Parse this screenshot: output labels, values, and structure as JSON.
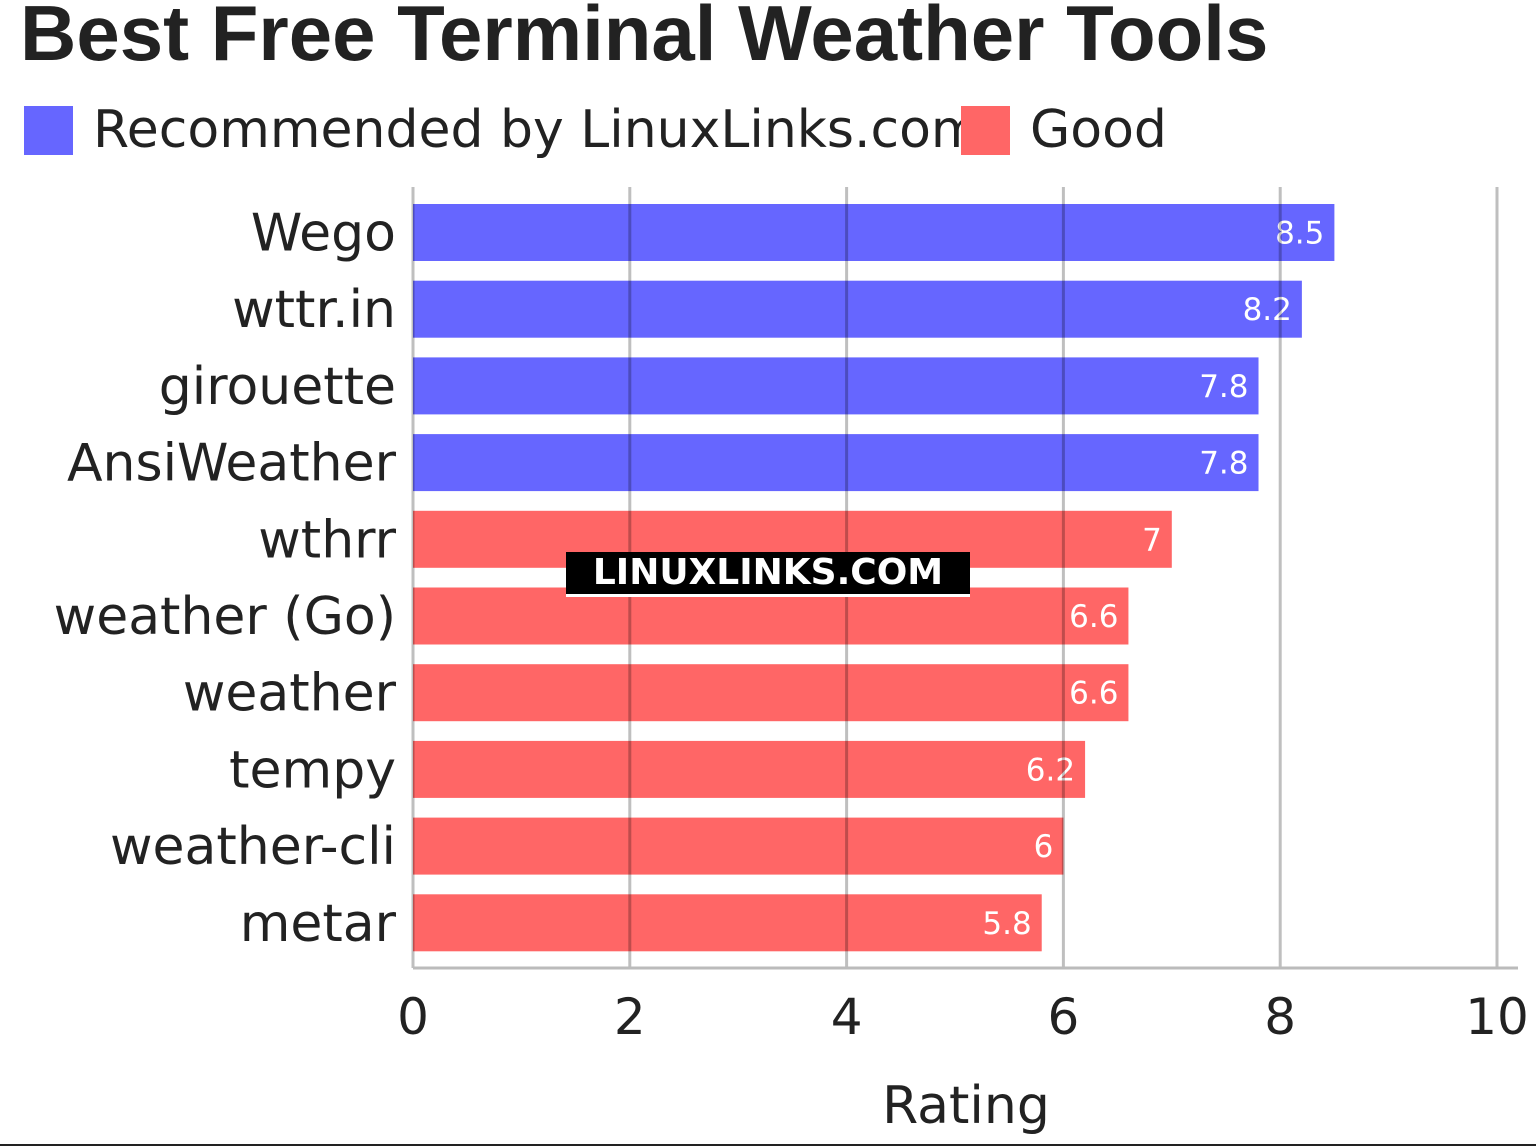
{
  "chart_data": {
    "type": "bar",
    "orientation": "horizontal",
    "title": "Best Free Terminal Weather Tools",
    "xlabel": "Rating",
    "ylabel": "",
    "xlim": [
      0,
      10
    ],
    "xticks": [
      "0",
      "2",
      "4",
      "6",
      "8",
      "10"
    ],
    "grid": true,
    "legend_placement": "top-left",
    "legend": [
      {
        "name": "Recommended by LinuxLinks.com",
        "color": "#6666ff"
      },
      {
        "name": "Good",
        "color": "#ff6666"
      }
    ],
    "categories": [
      "Wego",
      "wttr.in",
      "girouette",
      "AnsiWeather",
      "wthrr",
      "weather (Go)",
      "weather",
      "tempy",
      "weather-cli",
      "metar"
    ],
    "values": [
      8.5,
      8.2,
      7.8,
      7.8,
      7,
      6.6,
      6.6,
      6.2,
      6,
      5.8
    ],
    "labels": [
      "8.5",
      "8.2",
      "7.8",
      "7.8",
      "7",
      "6.6",
      "6.6",
      "6.2",
      "6",
      "5.8"
    ],
    "groups": [
      0,
      0,
      0,
      0,
      1,
      1,
      1,
      1,
      1,
      1
    ]
  },
  "watermark": "LINUXLINKS.COM"
}
